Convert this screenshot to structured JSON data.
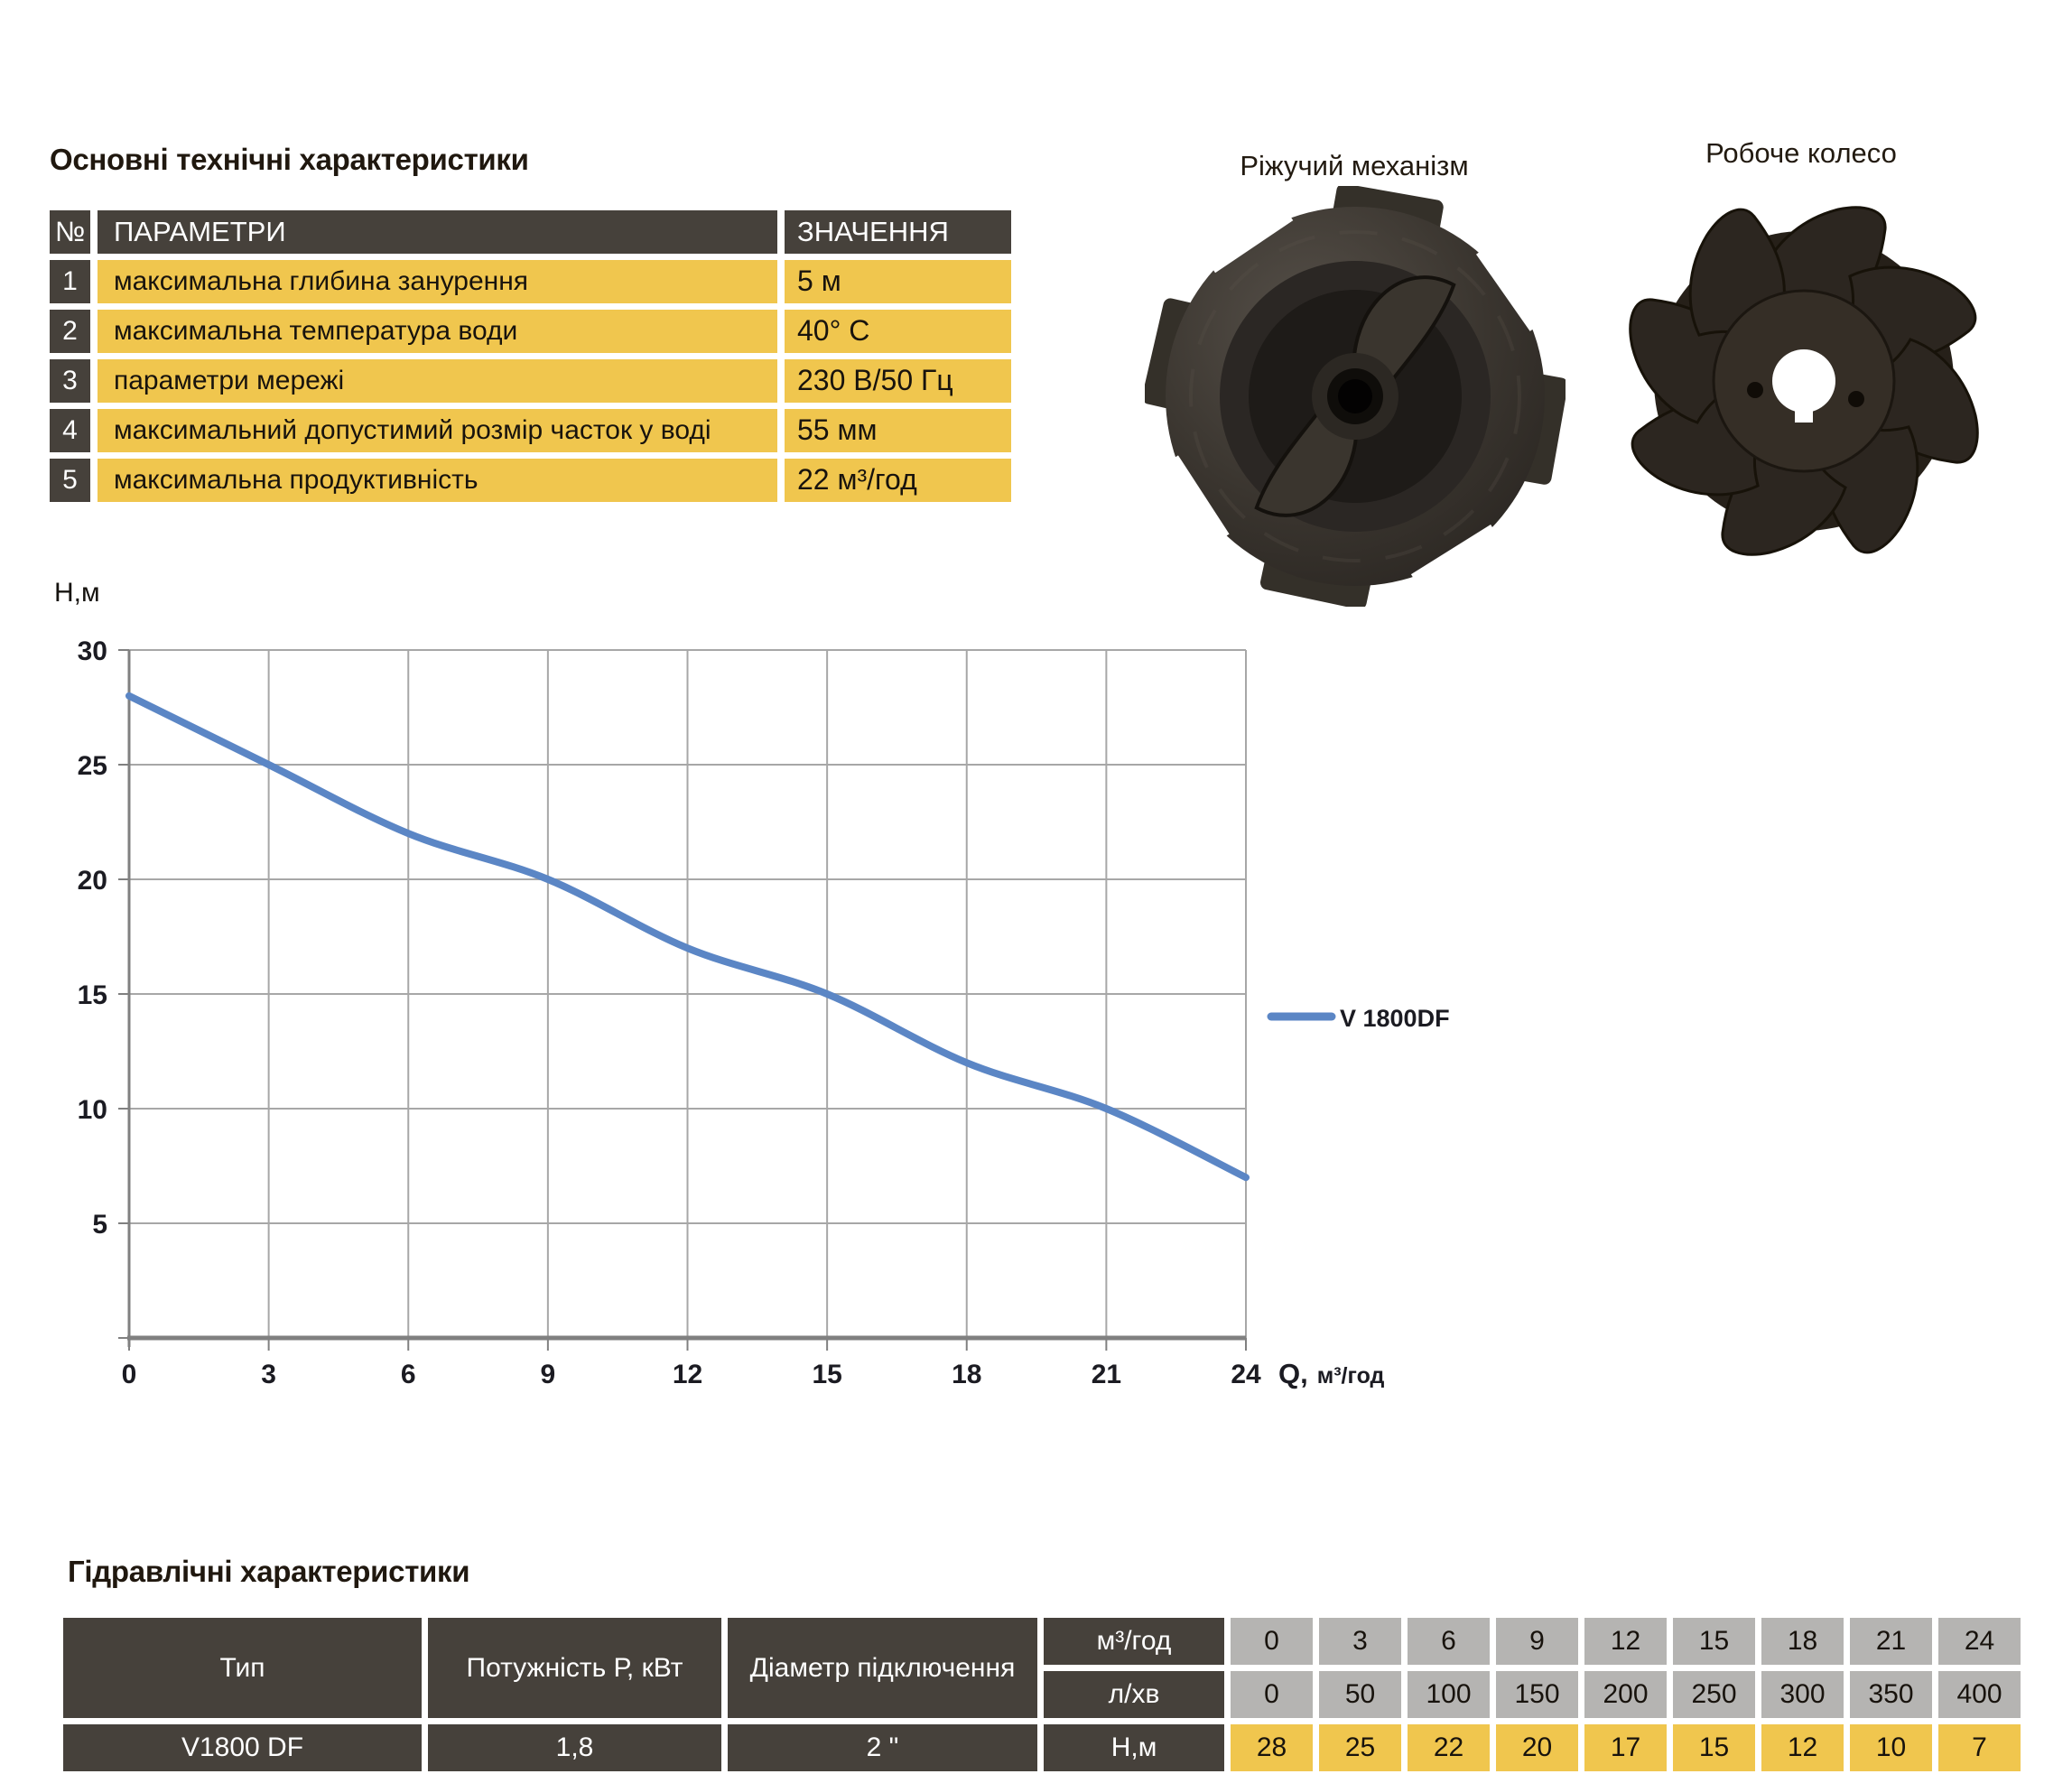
{
  "specs": {
    "title": "Основні технічні характеристики",
    "headers": {
      "num": "№",
      "param": "ПАРАМЕТРИ",
      "value": "ЗНАЧЕННЯ"
    },
    "rows": [
      {
        "num": "1",
        "param": "максимальна глибина занурення",
        "value": "5 м"
      },
      {
        "num": "2",
        "param": "максимальна температура води",
        "value": "40° С"
      },
      {
        "num": "3",
        "param": "параметри мережі",
        "value": "230 В/50 Гц"
      },
      {
        "num": "4",
        "param": "максимальний допустимий розмір часток у воді",
        "value": "55 мм"
      },
      {
        "num": "5",
        "param": "максимальна продуктивність",
        "value": "22 м³/год"
      }
    ]
  },
  "photos": {
    "cutter_label": "Ріжучий механізм",
    "impeller_label": "Робоче колесо"
  },
  "chart_data": {
    "type": "line",
    "title": "",
    "ylabel": "Н,м",
    "xlabel_prefix": "Q,",
    "xlabel_unit": "м³/год",
    "x": [
      0,
      3,
      6,
      9,
      12,
      15,
      18,
      21,
      24
    ],
    "x_ticks": [
      0,
      3,
      6,
      9,
      12,
      15,
      18,
      21,
      24
    ],
    "y_ticks": [
      5,
      10,
      15,
      20,
      25,
      30
    ],
    "xlim": [
      0,
      24
    ],
    "ylim": [
      0,
      30
    ],
    "grid": true,
    "legend_position": "right",
    "series": [
      {
        "name": "V 1800DF",
        "color": "#5B86C5",
        "values": [
          28,
          25,
          22,
          20,
          17,
          15,
          12,
          10,
          7
        ]
      }
    ]
  },
  "hydraulic": {
    "title": "Гідравлічні характеристики",
    "headers": {
      "type": "Тип",
      "power": "Потужність Р, кВт",
      "diameter": "Діаметр підключення"
    },
    "unit_rows": [
      {
        "label": "м³/год",
        "values": [
          "0",
          "3",
          "6",
          "9",
          "12",
          "15",
          "18",
          "21",
          "24"
        ]
      },
      {
        "label": "л/хв",
        "values": [
          "0",
          "50",
          "100",
          "150",
          "200",
          "250",
          "300",
          "350",
          "400"
        ]
      }
    ],
    "data_row": {
      "type": "V1800 DF",
      "power": "1,8",
      "diameter": "2 \"",
      "label": "Н,м",
      "values": [
        "28",
        "25",
        "22",
        "20",
        "17",
        "15",
        "12",
        "10",
        "7"
      ]
    }
  },
  "colors": {
    "dark": "#46413B",
    "yellow": "#F0C64E",
    "gray": "#B5B4B2",
    "line_blue": "#5B86C5",
    "grid_gray": "#A7A7A7",
    "axis_gray": "#808080"
  }
}
